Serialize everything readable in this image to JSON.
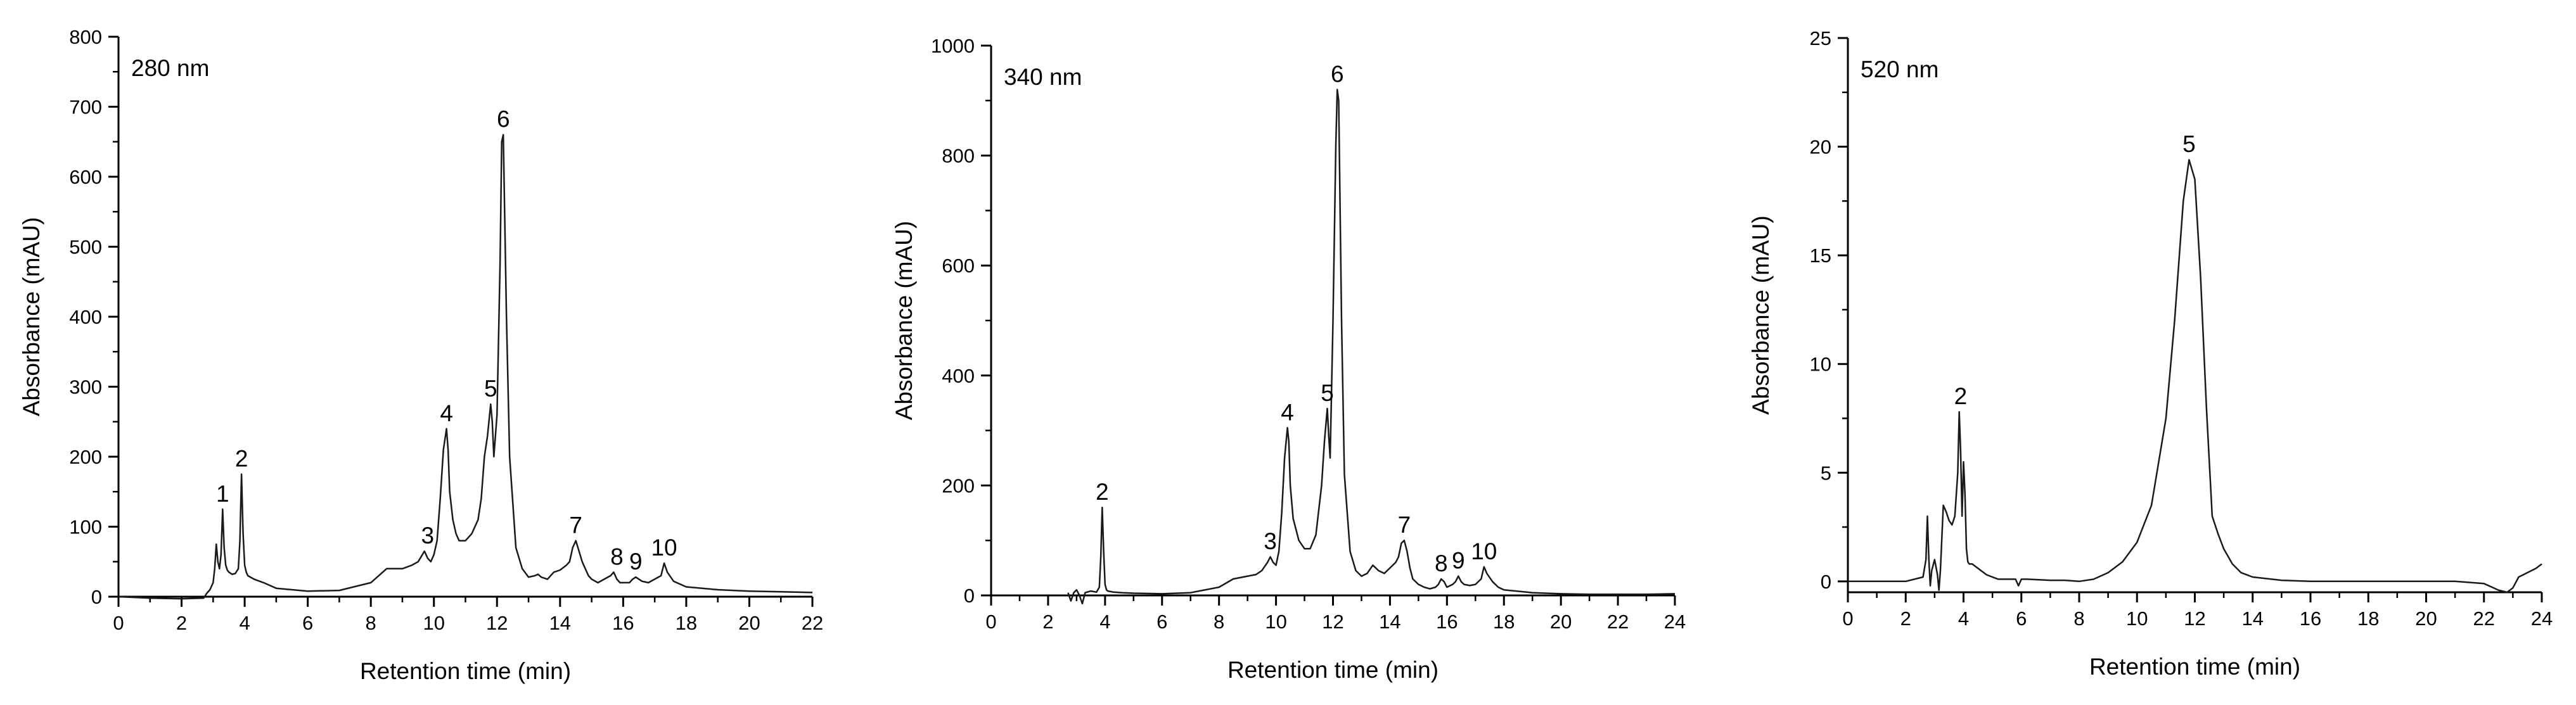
{
  "chart_data": [
    {
      "type": "line",
      "title": "280 nm",
      "xlabel": "Retention time (min)",
      "ylabel": "Absorbance (mAU)",
      "xlim": [
        0,
        22
      ],
      "ylim": [
        0,
        800
      ],
      "xticks": [
        0,
        2,
        4,
        6,
        8,
        10,
        12,
        14,
        16,
        18,
        20,
        22
      ],
      "yticks": [
        0,
        100,
        200,
        300,
        400,
        500,
        600,
        700,
        800
      ],
      "grid": false,
      "x": [
        0,
        1,
        2,
        2.7,
        2.8,
        2.9,
        3.0,
        3.05,
        3.1,
        3.15,
        3.2,
        3.25,
        3.3,
        3.35,
        3.4,
        3.45,
        3.5,
        3.6,
        3.7,
        3.8,
        3.85,
        3.9,
        3.95,
        4.0,
        4.05,
        4.1,
        4.3,
        4.6,
        5,
        6,
        7,
        8,
        8.5,
        9,
        9.3,
        9.5,
        9.7,
        9.8,
        9.9,
        10.0,
        10.1,
        10.2,
        10.3,
        10.4,
        10.45,
        10.5,
        10.6,
        10.7,
        10.8,
        11.0,
        11.2,
        11.4,
        11.5,
        11.6,
        11.7,
        11.8,
        11.85,
        11.9,
        12.0,
        12.1,
        12.15,
        12.2,
        12.3,
        12.4,
        12.6,
        12.8,
        13.0,
        13.2,
        13.3,
        13.4,
        13.6,
        13.8,
        14.0,
        14.2,
        14.3,
        14.4,
        14.5,
        14.6,
        14.7,
        14.8,
        14.9,
        15.0,
        15.2,
        15.4,
        15.6,
        15.7,
        15.8,
        15.9,
        16.0,
        16.2,
        16.3,
        16.4,
        16.5,
        16.6,
        16.8,
        17.0,
        17.2,
        17.3,
        17.4,
        17.6,
        17.8,
        18,
        19,
        20,
        21,
        22
      ],
      "values": [
        0,
        -2,
        -3,
        -2,
        5,
        10,
        20,
        40,
        75,
        50,
        40,
        60,
        125,
        70,
        45,
        38,
        35,
        32,
        33,
        40,
        80,
        175,
        90,
        45,
        35,
        30,
        25,
        20,
        12,
        8,
        9,
        20,
        40,
        40,
        45,
        50,
        65,
        55,
        50,
        60,
        80,
        140,
        210,
        240,
        210,
        150,
        110,
        90,
        80,
        80,
        90,
        110,
        140,
        200,
        230,
        275,
        250,
        200,
        260,
        480,
        650,
        660,
        400,
        200,
        70,
        40,
        28,
        30,
        32,
        28,
        25,
        35,
        38,
        45,
        50,
        70,
        80,
        65,
        50,
        40,
        30,
        25,
        20,
        25,
        30,
        35,
        25,
        20,
        20,
        20,
        25,
        28,
        25,
        22,
        20,
        25,
        30,
        48,
        35,
        22,
        18,
        14,
        10,
        8,
        7,
        6
      ],
      "peak_labels": [
        {
          "text": "1",
          "x": 3.3,
          "y": 125
        },
        {
          "text": "2",
          "x": 3.9,
          "y": 175
        },
        {
          "text": "3",
          "x": 9.8,
          "y": 65
        },
        {
          "text": "4",
          "x": 10.4,
          "y": 240
        },
        {
          "text": "5",
          "x": 11.8,
          "y": 275
        },
        {
          "text": "6",
          "x": 12.2,
          "y": 660
        },
        {
          "text": "7",
          "x": 14.5,
          "y": 80
        },
        {
          "text": "8",
          "x": 15.8,
          "y": 35
        },
        {
          "text": "9",
          "x": 16.4,
          "y": 28
        },
        {
          "text": "10",
          "x": 17.3,
          "y": 48
        }
      ]
    },
    {
      "type": "line",
      "title": "340 nm",
      "xlabel": "Retention time (min)",
      "ylabel": "Absorbance (mAU)",
      "xlim": [
        0,
        24
      ],
      "ylim": [
        0,
        1000
      ],
      "xticks": [
        0,
        2,
        4,
        6,
        8,
        10,
        12,
        14,
        16,
        18,
        20,
        22,
        24
      ],
      "yticks": [
        0,
        200,
        400,
        600,
        800,
        1000
      ],
      "grid": false,
      "x": [
        2.7,
        2.8,
        2.9,
        3.0,
        3.1,
        3.2,
        3.3,
        3.5,
        3.7,
        3.8,
        3.85,
        3.9,
        3.95,
        4.0,
        4.05,
        4.1,
        4.3,
        4.6,
        5,
        6,
        7,
        8,
        8.5,
        9,
        9.3,
        9.5,
        9.7,
        9.8,
        9.9,
        10.0,
        10.1,
        10.2,
        10.3,
        10.4,
        10.45,
        10.5,
        10.6,
        10.8,
        11.0,
        11.2,
        11.4,
        11.6,
        11.7,
        11.8,
        11.85,
        11.9,
        12.0,
        12.1,
        12.15,
        12.2,
        12.3,
        12.4,
        12.6,
        12.8,
        13.0,
        13.2,
        13.4,
        13.6,
        13.8,
        14.0,
        14.2,
        14.3,
        14.4,
        14.5,
        14.6,
        14.7,
        14.8,
        15.0,
        15.2,
        15.4,
        15.6,
        15.7,
        15.8,
        15.9,
        16.0,
        16.2,
        16.3,
        16.4,
        16.5,
        16.6,
        16.8,
        17.0,
        17.2,
        17.3,
        17.4,
        17.6,
        17.8,
        18,
        19,
        20,
        21,
        22,
        23,
        24
      ],
      "values": [
        5,
        -10,
        5,
        10,
        0,
        -15,
        5,
        8,
        6,
        15,
        70,
        160,
        80,
        20,
        10,
        8,
        6,
        5,
        4,
        3,
        5,
        15,
        30,
        35,
        38,
        45,
        60,
        70,
        60,
        55,
        80,
        150,
        250,
        305,
        280,
        200,
        140,
        100,
        85,
        85,
        110,
        200,
        280,
        340,
        290,
        250,
        500,
        820,
        920,
        900,
        500,
        220,
        80,
        45,
        35,
        40,
        55,
        45,
        40,
        50,
        60,
        70,
        95,
        100,
        80,
        50,
        30,
        20,
        15,
        12,
        15,
        20,
        30,
        25,
        15,
        20,
        25,
        35,
        25,
        20,
        18,
        20,
        30,
        52,
        40,
        25,
        15,
        10,
        5,
        3,
        2,
        2,
        2,
        3
      ],
      "peak_labels": [
        {
          "text": "2",
          "x": 3.9,
          "y": 160
        },
        {
          "text": "3",
          "x": 9.8,
          "y": 70
        },
        {
          "text": "4",
          "x": 10.4,
          "y": 305
        },
        {
          "text": "5",
          "x": 11.8,
          "y": 340
        },
        {
          "text": "6",
          "x": 12.15,
          "y": 920
        },
        {
          "text": "7",
          "x": 14.5,
          "y": 100
        },
        {
          "text": "8",
          "x": 15.8,
          "y": 30
        },
        {
          "text": "9",
          "x": 16.4,
          "y": 35
        },
        {
          "text": "10",
          "x": 17.3,
          "y": 52
        }
      ]
    },
    {
      "type": "line",
      "title": "520 nm",
      "xlabel": "Retention time (min)",
      "ylabel": "Absorbance (mAU)",
      "xlim": [
        0,
        24
      ],
      "ylim": [
        -0.5,
        25
      ],
      "xticks": [
        0,
        2,
        4,
        6,
        8,
        10,
        12,
        14,
        16,
        18,
        20,
        22,
        24
      ],
      "yticks": [
        0,
        5,
        10,
        15,
        20,
        25
      ],
      "grid": false,
      "x": [
        0,
        1,
        2,
        2.6,
        2.7,
        2.75,
        2.8,
        2.85,
        2.9,
        3.0,
        3.1,
        3.15,
        3.2,
        3.25,
        3.3,
        3.4,
        3.5,
        3.6,
        3.7,
        3.8,
        3.85,
        3.9,
        3.95,
        4.0,
        4.05,
        4.1,
        4.15,
        4.2,
        4.3,
        4.5,
        4.8,
        5.2,
        5.8,
        5.9,
        6.0,
        6.2,
        7.0,
        7.5,
        8.0,
        8.5,
        9.0,
        9.5,
        10.0,
        10.5,
        11.0,
        11.3,
        11.6,
        11.8,
        12.0,
        12.2,
        12.4,
        12.6,
        12.8,
        13.0,
        13.3,
        13.6,
        14,
        15,
        16,
        18,
        20,
        21,
        22,
        22.5,
        22.8,
        23.0,
        23.2,
        23.5,
        23.8,
        24
      ],
      "values": [
        0,
        0,
        0,
        0.2,
        1,
        3,
        1,
        -0.2,
        0.5,
        1,
        0.3,
        -0.4,
        0.5,
        2,
        3.5,
        3.2,
        2.8,
        2.6,
        3,
        5,
        7.8,
        6,
        3,
        5.5,
        4,
        1.5,
        0.9,
        0.8,
        0.8,
        0.6,
        0.3,
        0.1,
        0.1,
        -0.2,
        0.1,
        0.1,
        0.05,
        0.05,
        0,
        0.1,
        0.4,
        0.9,
        1.8,
        3.5,
        7.5,
        12,
        17.5,
        19.4,
        18.5,
        14,
        8,
        3,
        2.2,
        1.5,
        0.8,
        0.4,
        0.2,
        0.05,
        0,
        0,
        0,
        0,
        -0.1,
        -0.4,
        -0.5,
        -0.3,
        0.2,
        0.4,
        0.6,
        0.8
      ],
      "peak_labels": [
        {
          "text": "2",
          "x": 3.9,
          "y": 7.8
        },
        {
          "text": "5",
          "x": 11.8,
          "y": 19.4
        }
      ]
    }
  ]
}
